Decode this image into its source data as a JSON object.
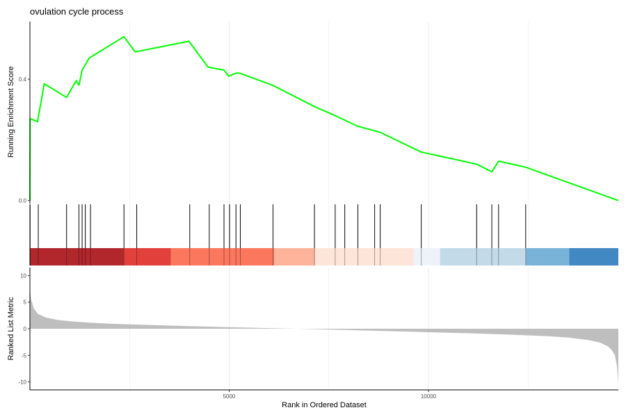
{
  "chart_data": {
    "type": "line",
    "title": "ovulation cycle process",
    "xlabel": "Rank in Ordered Dataset",
    "x_ticks": [
      5000,
      10000
    ],
    "xlim": [
      0,
      14765
    ],
    "grid": "vertical",
    "legend": "none",
    "top_panel": {
      "ylabel": "Running Enrichment Score",
      "y_ticks": [
        "0.0",
        "0.4"
      ],
      "y_tick_values": [
        0,
        0.4
      ],
      "ylim": [
        -0.01,
        0.59
      ],
      "color": "#00ff00",
      "series": [
        {
          "x": [
            0,
            5,
            190,
            360,
            920,
            1160,
            1230,
            1310,
            1490,
            2360,
            2640,
            3990,
            4470,
            4870,
            4990,
            5170,
            5260,
            6090,
            7140,
            7660,
            7900,
            8220,
            8650,
            8790,
            9820,
            11210,
            11590,
            11760,
            12440,
            14765
          ],
          "y": [
            0,
            0.27,
            0.26,
            0.385,
            0.34,
            0.395,
            0.38,
            0.43,
            0.47,
            0.54,
            0.49,
            0.525,
            0.44,
            0.43,
            0.41,
            0.42,
            0.42,
            0.38,
            0.31,
            0.28,
            0.265,
            0.245,
            0.23,
            0.225,
            0.16,
            0.12,
            0.095,
            0.13,
            0.11,
            0.0
          ]
        }
      ]
    },
    "hits": [
      5,
      210,
      920,
      1230,
      1310,
      1390,
      1520,
      2360,
      2680,
      4010,
      4500,
      4870,
      5010,
      5170,
      5280,
      6100,
      7140,
      7660,
      7900,
      8230,
      8650,
      8790,
      9820,
      11210,
      11590,
      11760,
      12440
    ],
    "color_bar": [
      {
        "start": 0,
        "end": 2350,
        "color": "#b2272c"
      },
      {
        "start": 2350,
        "end": 3540,
        "color": "#e2413b"
      },
      {
        "start": 3540,
        "end": 6130,
        "color": "#fb775d"
      },
      {
        "start": 6130,
        "end": 7150,
        "color": "#fdb49b"
      },
      {
        "start": 7150,
        "end": 9630,
        "color": "#fee5d9"
      },
      {
        "start": 9630,
        "end": 10290,
        "color": "#eef3fa"
      },
      {
        "start": 10290,
        "end": 12450,
        "color": "#c3dbe9"
      },
      {
        "start": 12450,
        "end": 13530,
        "color": "#79b4d8"
      },
      {
        "start": 13530,
        "end": 14765,
        "color": "#4288c2"
      }
    ],
    "bottom_panel": {
      "ylabel": "Ranked List Metric",
      "y_ticks": [
        "-10",
        "-5",
        "0",
        "5",
        "10"
      ],
      "y_tick_values": [
        -10,
        -5,
        0,
        5,
        10
      ],
      "ylim": [
        -11.5,
        11.5
      ],
      "fill": "#bebebe",
      "series": [
        {
          "x": [
            0,
            30,
            100,
            200,
            400,
            700,
            1000,
            1500,
            2000,
            3000,
            4000,
            5000,
            6000,
            7000,
            8000,
            9000,
            10000,
            11000,
            12000,
            13000,
            13500,
            14000,
            14300,
            14500,
            14600,
            14680,
            14730,
            14765
          ],
          "y": [
            7.5,
            5.5,
            3.8,
            2.8,
            2.1,
            1.65,
            1.4,
            1.15,
            0.95,
            0.7,
            0.5,
            0.3,
            0.12,
            -0.05,
            -0.25,
            -0.45,
            -0.65,
            -0.85,
            -1.1,
            -1.4,
            -1.65,
            -2.1,
            -2.6,
            -3.3,
            -4.0,
            -5.0,
            -7.0,
            -10.5
          ]
        }
      ]
    }
  }
}
